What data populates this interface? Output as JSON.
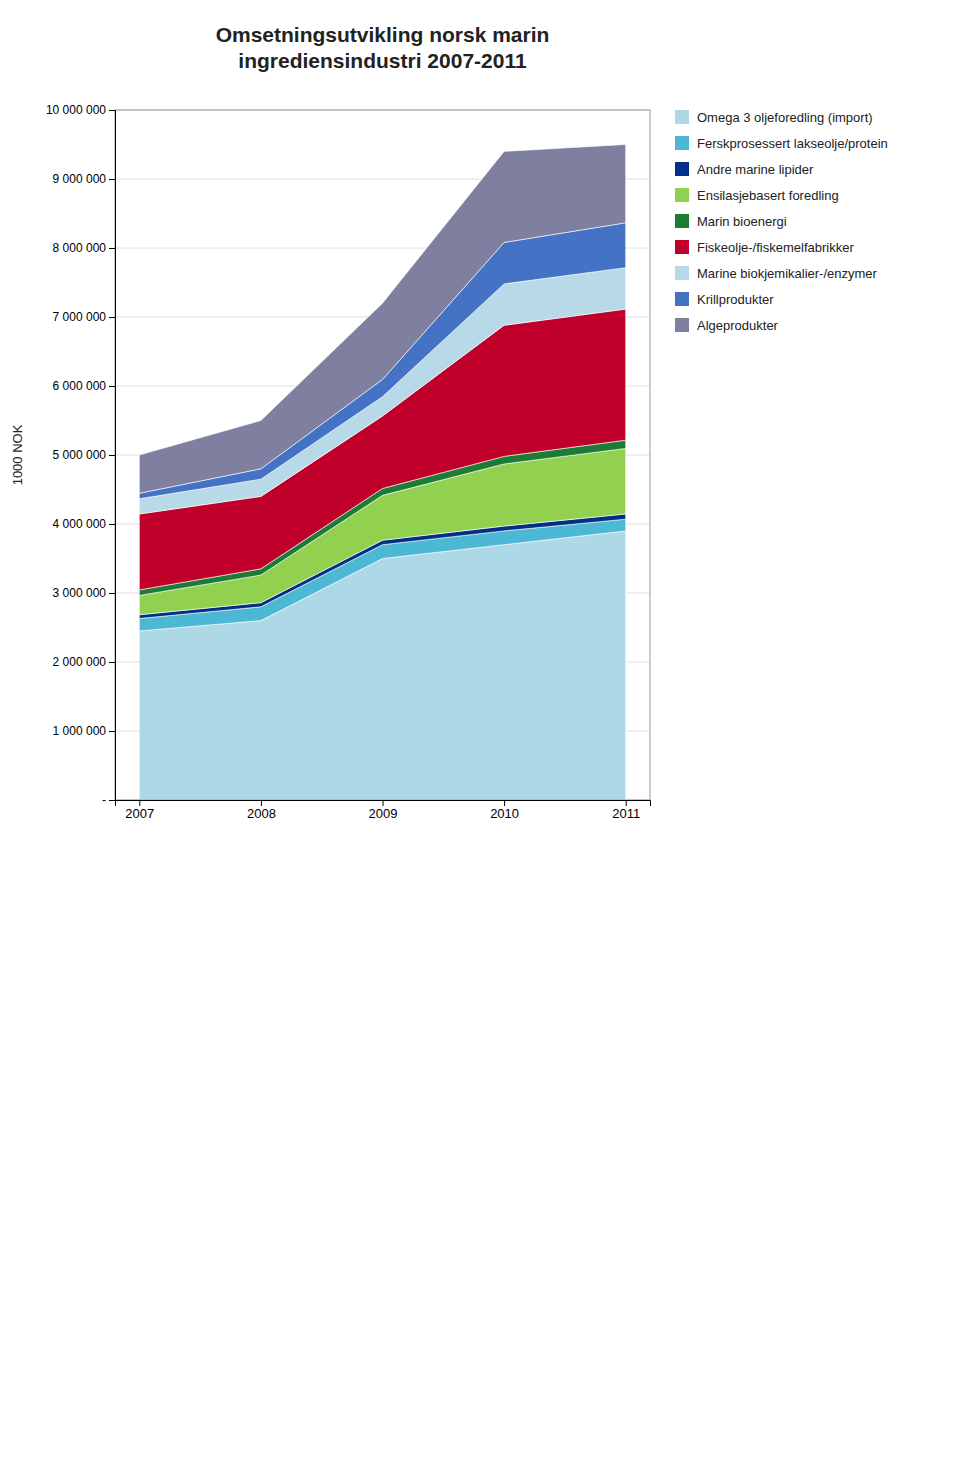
{
  "chart_data": {
    "type": "area",
    "stacked": true,
    "title": "Omsetningsutvikling norsk marin\ningrediensindustri 2007-2011",
    "ylabel": "1000 NOK",
    "x": [
      2007,
      2008,
      2009,
      2010,
      2011
    ],
    "xlim": [
      2006.8,
      2011.2
    ],
    "xticks": [
      2007,
      2008,
      2009,
      2010,
      2011
    ],
    "ylim": [
      0,
      10000000
    ],
    "yticks": [
      {
        "value": 0,
        "label": "-"
      },
      {
        "value": 1000000,
        "label": "1 000 000"
      },
      {
        "value": 2000000,
        "label": "2 000 000"
      },
      {
        "value": 3000000,
        "label": "3 000 000"
      },
      {
        "value": 4000000,
        "label": "4 000 000"
      },
      {
        "value": 5000000,
        "label": "5 000 000"
      },
      {
        "value": 6000000,
        "label": "6 000 000"
      },
      {
        "value": 7000000,
        "label": "7 000 000"
      },
      {
        "value": 8000000,
        "label": "8 000 000"
      },
      {
        "value": 9000000,
        "label": "9 000 000"
      },
      {
        "value": 10000000,
        "label": "10 000 000"
      }
    ],
    "grid": true,
    "legend": "right",
    "series": [
      {
        "name": "Omega 3 oljeforedling (import)",
        "color": "#add8e6",
        "values": [
          2450000,
          2600000,
          3500000,
          3700000,
          3900000
        ]
      },
      {
        "name": "Ferskprosessert lakseolje/protein",
        "color": "#4db8d4",
        "values": [
          180000,
          200000,
          200000,
          200000,
          170000
        ]
      },
      {
        "name": "Andre marine lipider",
        "color": "#003087",
        "values": [
          55000,
          60000,
          65000,
          70000,
          75000
        ]
      },
      {
        "name": "Ensilasjebasert foredling",
        "color": "#92d050",
        "values": [
          280000,
          400000,
          650000,
          900000,
          950000
        ]
      },
      {
        "name": "Marin bioenergi",
        "color": "#1c7c34",
        "values": [
          80000,
          90000,
          100000,
          110000,
          120000
        ]
      },
      {
        "name": "Fiskeolje-/fiskemelfabrikker",
        "color": "#c0002a",
        "values": [
          1100000,
          1050000,
          1050000,
          1900000,
          1900000
        ]
      },
      {
        "name": "Marine biokjemikalier-/enzymer",
        "color": "#b8d9e8",
        "values": [
          220000,
          250000,
          280000,
          600000,
          600000
        ]
      },
      {
        "name": "Krillprodukter",
        "color": "#4472c4",
        "values": [
          80000,
          150000,
          250000,
          600000,
          650000
        ]
      },
      {
        "name": "Algeprodukter",
        "color": "#7f7f9f",
        "values": [
          555000,
          700000,
          1105000,
          1320000,
          1135000
        ]
      }
    ]
  }
}
